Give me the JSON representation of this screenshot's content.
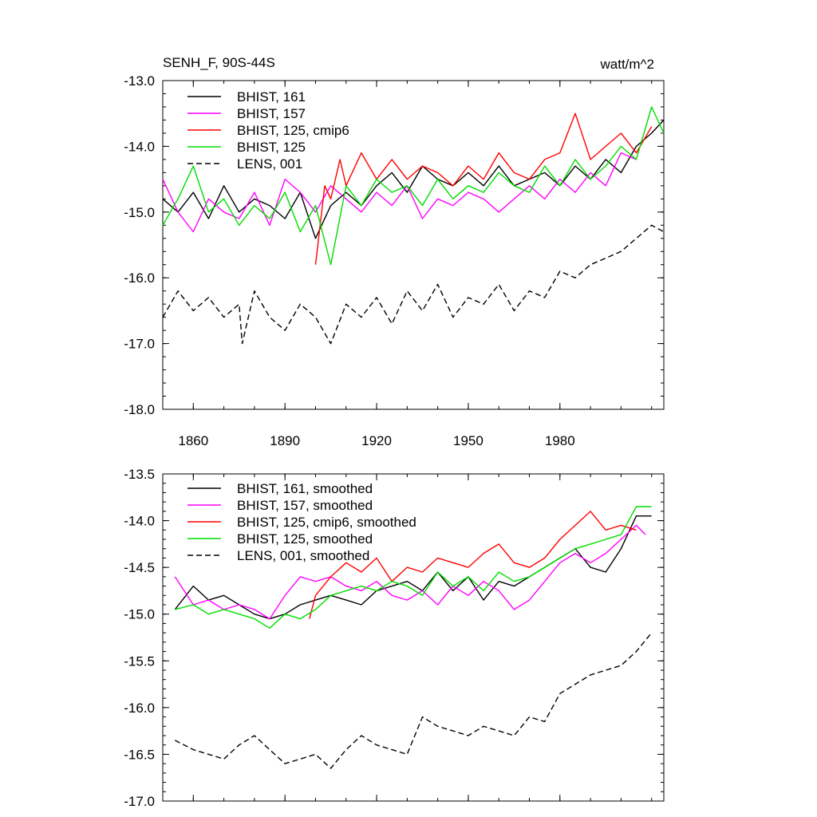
{
  "figure": {
    "title": "SENH_F, 90S-44S",
    "units": "watt/m^2"
  },
  "chart_data": [
    {
      "type": "line",
      "panel": "top",
      "xlim": [
        1850,
        2014
      ],
      "ylim": [
        -18.0,
        -13.0
      ],
      "yticks": [
        -18.0,
        -17.0,
        -16.0,
        -15.0,
        -14.0,
        -13.0
      ],
      "ytick_labels": [
        "-18.0",
        "-17.0",
        "-16.0",
        "-15.0",
        "-14.0",
        "-13.0"
      ],
      "xticks": [
        1860,
        1890,
        1920,
        1950,
        1980
      ],
      "xtick_labels": [
        "1860",
        "1890",
        "1920",
        "1950",
        "1980"
      ],
      "grid": false,
      "legend_position": "top-left",
      "series": [
        {
          "name": "BHIST, 161",
          "color": "#000000",
          "dash": "solid",
          "x": [
            1850,
            1855,
            1860,
            1865,
            1870,
            1875,
            1880,
            1885,
            1890,
            1895,
            1900,
            1905,
            1910,
            1915,
            1920,
            1925,
            1930,
            1935,
            1940,
            1945,
            1950,
            1955,
            1960,
            1965,
            1970,
            1975,
            1980,
            1985,
            1990,
            1995,
            2000,
            2005,
            2010,
            2014
          ],
          "values": [
            -14.8,
            -15.0,
            -14.7,
            -15.1,
            -14.6,
            -15.0,
            -14.8,
            -14.9,
            -15.1,
            -14.7,
            -15.4,
            -14.9,
            -14.7,
            -14.9,
            -14.6,
            -14.4,
            -14.7,
            -14.3,
            -14.5,
            -14.6,
            -14.4,
            -14.6,
            -14.3,
            -14.6,
            -14.5,
            -14.4,
            -14.6,
            -14.3,
            -14.5,
            -14.2,
            -14.4,
            -14.0,
            -13.8,
            -13.6
          ]
        },
        {
          "name": "BHIST, 157",
          "color": "#ff00ff",
          "dash": "solid",
          "x": [
            1850,
            1855,
            1860,
            1865,
            1870,
            1875,
            1880,
            1885,
            1890,
            1895,
            1900,
            1905,
            1910,
            1915,
            1920,
            1925,
            1930,
            1935,
            1940,
            1945,
            1950,
            1955,
            1960,
            1965,
            1970,
            1975,
            1980,
            1985,
            1990,
            1995,
            2000,
            2005
          ],
          "values": [
            -14.5,
            -15.0,
            -15.3,
            -14.8,
            -15.0,
            -15.1,
            -14.7,
            -15.2,
            -14.5,
            -14.7,
            -15.0,
            -14.6,
            -14.8,
            -15.0,
            -14.7,
            -14.9,
            -14.6,
            -15.1,
            -14.8,
            -14.9,
            -14.7,
            -14.8,
            -15.0,
            -14.8,
            -14.6,
            -14.8,
            -14.5,
            -14.7,
            -14.4,
            -14.6,
            -14.1,
            -14.2
          ]
        },
        {
          "name": "BHIST, 125, cmip6",
          "color": "#ff0000",
          "dash": "solid",
          "x": [
            1900,
            1903,
            1905,
            1908,
            1910,
            1915,
            1920,
            1925,
            1930,
            1935,
            1940,
            1945,
            1950,
            1955,
            1960,
            1965,
            1970,
            1975,
            1980,
            1985,
            1990,
            1995,
            2000,
            2005,
            2010
          ],
          "values": [
            -15.8,
            -14.6,
            -14.8,
            -14.2,
            -14.6,
            -14.1,
            -14.5,
            -14.2,
            -14.5,
            -14.3,
            -14.4,
            -14.6,
            -14.3,
            -14.5,
            -14.1,
            -14.4,
            -14.5,
            -14.2,
            -14.1,
            -13.5,
            -14.2,
            -14.0,
            -13.8,
            -14.1,
            -13.7
          ]
        },
        {
          "name": "BHIST, 125",
          "color": "#00dd00",
          "dash": "solid",
          "x": [
            1850,
            1855,
            1860,
            1865,
            1870,
            1875,
            1880,
            1885,
            1890,
            1895,
            1900,
            1905,
            1910,
            1915,
            1920,
            1925,
            1930,
            1935,
            1940,
            1945,
            1950,
            1955,
            1960,
            1965,
            1970,
            1975,
            1980,
            1985,
            1990,
            1995,
            2000,
            2005,
            2010,
            2014
          ],
          "values": [
            -15.2,
            -14.8,
            -14.3,
            -15.0,
            -14.8,
            -15.2,
            -14.9,
            -15.1,
            -14.7,
            -15.3,
            -14.9,
            -15.8,
            -14.6,
            -14.9,
            -14.5,
            -14.7,
            -14.6,
            -14.9,
            -14.5,
            -14.8,
            -14.6,
            -14.7,
            -14.4,
            -14.6,
            -14.7,
            -14.3,
            -14.6,
            -14.2,
            -14.5,
            -14.3,
            -14.0,
            -14.2,
            -13.4,
            -13.8
          ]
        },
        {
          "name": "LENS, 001",
          "color": "#000000",
          "dash": "dashed",
          "x": [
            1850,
            1855,
            1860,
            1865,
            1870,
            1875,
            1876,
            1880,
            1885,
            1890,
            1895,
            1900,
            1905,
            1910,
            1915,
            1920,
            1925,
            1930,
            1935,
            1940,
            1945,
            1950,
            1955,
            1960,
            1965,
            1970,
            1975,
            1980,
            1985,
            1990,
            1995,
            2000,
            2005,
            2010,
            2014
          ],
          "values": [
            -16.6,
            -16.2,
            -16.5,
            -16.3,
            -16.6,
            -16.4,
            -17.0,
            -16.2,
            -16.6,
            -16.8,
            -16.4,
            -16.6,
            -17.0,
            -16.4,
            -16.6,
            -16.3,
            -16.7,
            -16.2,
            -16.5,
            -16.1,
            -16.6,
            -16.3,
            -16.4,
            -16.1,
            -16.5,
            -16.2,
            -16.3,
            -15.9,
            -16.0,
            -15.8,
            -15.7,
            -15.6,
            -15.4,
            -15.2,
            -15.3
          ]
        }
      ]
    },
    {
      "type": "line",
      "panel": "bottom",
      "xlim": [
        1850,
        2014
      ],
      "ylim": [
        -17.0,
        -13.5
      ],
      "yticks": [
        -17.0,
        -16.5,
        -16.0,
        -15.5,
        -15.0,
        -14.5,
        -14.0,
        -13.5
      ],
      "ytick_labels": [
        "-17.0",
        "-16.5",
        "-16.0",
        "-15.5",
        "-15.0",
        "-14.5",
        "-14.0",
        "-13.5"
      ],
      "xticks": [
        1860,
        1890,
        1920,
        1950,
        1980
      ],
      "grid": false,
      "legend_position": "top-left",
      "series": [
        {
          "name": "BHIST, 161, smoothed",
          "color": "#000000",
          "dash": "solid",
          "x": [
            1854,
            1860,
            1865,
            1870,
            1875,
            1880,
            1885,
            1890,
            1895,
            1900,
            1905,
            1910,
            1915,
            1920,
            1925,
            1930,
            1935,
            1940,
            1945,
            1950,
            1955,
            1960,
            1965,
            1970,
            1975,
            1980,
            1985,
            1990,
            1995,
            2000,
            2005,
            2010
          ],
          "values": [
            -14.95,
            -14.7,
            -14.85,
            -14.8,
            -14.9,
            -15.0,
            -15.05,
            -15.0,
            -14.9,
            -14.85,
            -14.8,
            -14.85,
            -14.9,
            -14.75,
            -14.7,
            -14.65,
            -14.75,
            -14.55,
            -14.75,
            -14.6,
            -14.85,
            -14.65,
            -14.7,
            -14.6,
            -14.5,
            -14.4,
            -14.3,
            -14.5,
            -14.55,
            -14.3,
            -13.95,
            -13.95
          ]
        },
        {
          "name": "BHIST, 157, smoothed",
          "color": "#ff00ff",
          "dash": "solid",
          "x": [
            1854,
            1860,
            1865,
            1870,
            1875,
            1880,
            1885,
            1890,
            1895,
            1900,
            1905,
            1910,
            1915,
            1920,
            1925,
            1930,
            1935,
            1940,
            1945,
            1950,
            1955,
            1960,
            1965,
            1970,
            1975,
            1980,
            1985,
            1990,
            1995,
            2000,
            2005,
            2008
          ],
          "values": [
            -14.6,
            -14.9,
            -14.85,
            -14.95,
            -14.9,
            -14.95,
            -15.05,
            -14.8,
            -14.6,
            -14.65,
            -14.6,
            -14.7,
            -14.75,
            -14.65,
            -14.8,
            -14.85,
            -14.75,
            -14.9,
            -14.7,
            -14.8,
            -14.65,
            -14.75,
            -14.95,
            -14.85,
            -14.65,
            -14.45,
            -14.35,
            -14.45,
            -14.35,
            -14.2,
            -14.05,
            -14.15
          ]
        },
        {
          "name": "BHIST, 125, cmip6, smoothed",
          "color": "#ff0000",
          "dash": "solid",
          "x": [
            1898,
            1900,
            1905,
            1910,
            1915,
            1920,
            1925,
            1930,
            1935,
            1940,
            1945,
            1950,
            1955,
            1960,
            1965,
            1970,
            1975,
            1980,
            1985,
            1990,
            1995,
            2000,
            2005
          ],
          "values": [
            -15.05,
            -14.8,
            -14.6,
            -14.45,
            -14.55,
            -14.4,
            -14.65,
            -14.5,
            -14.55,
            -14.4,
            -14.45,
            -14.5,
            -14.35,
            -14.25,
            -14.45,
            -14.5,
            -14.4,
            -14.2,
            -14.05,
            -13.9,
            -14.1,
            -14.05,
            -14.1
          ]
        },
        {
          "name": "BHIST, 125, smoothed",
          "color": "#00dd00",
          "dash": "solid",
          "x": [
            1854,
            1860,
            1865,
            1870,
            1875,
            1880,
            1885,
            1890,
            1895,
            1900,
            1905,
            1910,
            1915,
            1920,
            1925,
            1930,
            1935,
            1940,
            1945,
            1950,
            1955,
            1960,
            1965,
            1970,
            1975,
            1980,
            1985,
            1990,
            1995,
            2000,
            2005,
            2010
          ],
          "values": [
            -14.95,
            -14.9,
            -15.0,
            -14.95,
            -15.0,
            -15.05,
            -15.15,
            -15.0,
            -15.05,
            -14.95,
            -14.8,
            -14.75,
            -14.7,
            -14.75,
            -14.65,
            -14.7,
            -14.8,
            -14.55,
            -14.7,
            -14.6,
            -14.75,
            -14.55,
            -14.65,
            -14.6,
            -14.5,
            -14.4,
            -14.3,
            -14.25,
            -14.2,
            -14.15,
            -13.85,
            -13.85
          ]
        },
        {
          "name": "LENS, 001, smoothed",
          "color": "#000000",
          "dash": "dashed",
          "x": [
            1854,
            1860,
            1865,
            1870,
            1875,
            1880,
            1885,
            1890,
            1895,
            1900,
            1905,
            1910,
            1915,
            1920,
            1925,
            1930,
            1935,
            1940,
            1945,
            1950,
            1955,
            1960,
            1965,
            1970,
            1975,
            1980,
            1985,
            1990,
            1995,
            2000,
            2005,
            2010
          ],
          "values": [
            -16.35,
            -16.45,
            -16.5,
            -16.55,
            -16.4,
            -16.3,
            -16.45,
            -16.6,
            -16.55,
            -16.5,
            -16.65,
            -16.45,
            -16.3,
            -16.4,
            -16.45,
            -16.5,
            -16.1,
            -16.2,
            -16.25,
            -16.3,
            -16.2,
            -16.25,
            -16.3,
            -16.1,
            -16.15,
            -15.85,
            -15.75,
            -15.65,
            -15.6,
            -15.55,
            -15.4,
            -15.2
          ]
        }
      ]
    }
  ]
}
